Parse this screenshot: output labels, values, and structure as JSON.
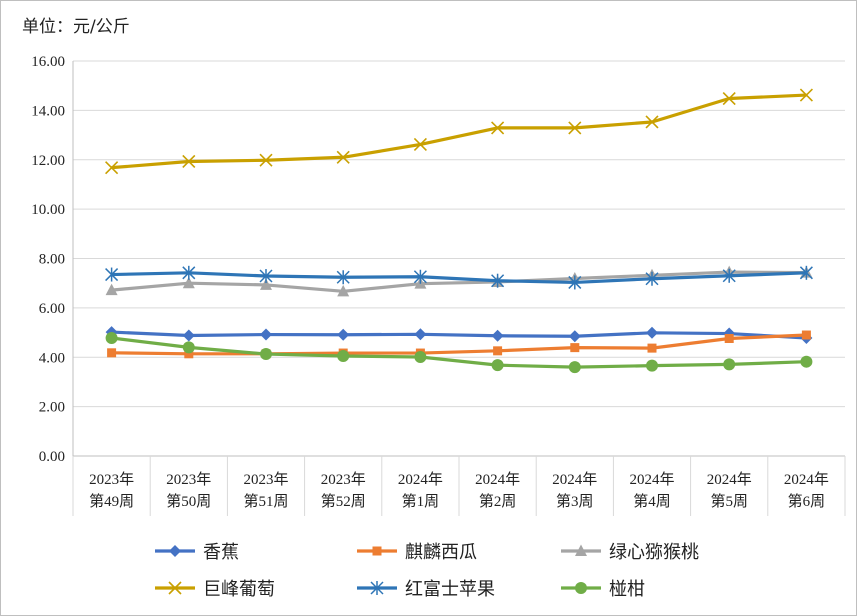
{
  "unit_label": "单位：元/公斤",
  "chart_data": {
    "type": "line",
    "categories": [
      [
        "2023年",
        "第49周"
      ],
      [
        "2023年",
        "第50周"
      ],
      [
        "2023年",
        "第51周"
      ],
      [
        "2023年",
        "第52周"
      ],
      [
        "2024年",
        "第1周"
      ],
      [
        "2024年",
        "第2周"
      ],
      [
        "2024年",
        "第3周"
      ],
      [
        "2024年",
        "第4周"
      ],
      [
        "2024年",
        "第5周"
      ],
      [
        "2024年",
        "第6周"
      ]
    ],
    "ylim": [
      0,
      16
    ],
    "yticks": [
      "0.00",
      "2.00",
      "4.00",
      "6.00",
      "8.00",
      "10.00",
      "12.00",
      "14.00",
      "16.00"
    ],
    "grid": true,
    "legend_position": "bottom",
    "series": [
      {
        "name": "香蕉",
        "color": "#4472C4",
        "marker": "diamond",
        "values": [
          5.02,
          4.88,
          4.92,
          4.91,
          4.93,
          4.87,
          4.85,
          4.99,
          4.96,
          4.78
        ]
      },
      {
        "name": "麒麟西瓜",
        "color": "#ED7D31",
        "marker": "square",
        "values": [
          4.18,
          4.14,
          4.14,
          4.17,
          4.17,
          4.26,
          4.39,
          4.37,
          4.76,
          4.9
        ]
      },
      {
        "name": "绿心猕猴桃",
        "color": "#A5A5A5",
        "marker": "triangle",
        "values": [
          6.72,
          7.0,
          6.93,
          6.67,
          6.98,
          7.05,
          7.19,
          7.32,
          7.45,
          7.43
        ]
      },
      {
        "name": "巨峰葡萄",
        "color": "#C9A000",
        "marker": "x",
        "values": [
          11.68,
          11.93,
          11.98,
          12.1,
          12.62,
          13.29,
          13.29,
          13.53,
          14.48,
          14.62
        ]
      },
      {
        "name": "红富士苹果",
        "color": "#2E75B6",
        "marker": "star",
        "values": [
          7.35,
          7.42,
          7.29,
          7.24,
          7.26,
          7.1,
          7.03,
          7.18,
          7.3,
          7.42
        ]
      },
      {
        "name": "椪柑",
        "color": "#70AD47",
        "marker": "circle",
        "values": [
          4.78,
          4.4,
          4.13,
          4.05,
          4.01,
          3.68,
          3.6,
          3.66,
          3.71,
          3.82
        ]
      }
    ]
  }
}
